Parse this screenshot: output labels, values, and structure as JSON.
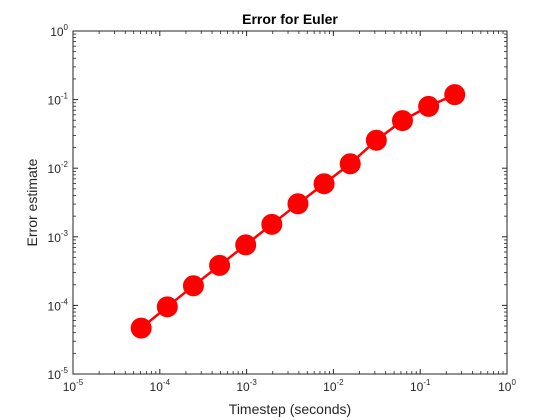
{
  "chart_data": {
    "type": "line",
    "title": "Error for Euler",
    "xlabel": "Timestep (seconds)",
    "ylabel": "Error estimate",
    "xscale": "log",
    "yscale": "log",
    "xlim": [
      1e-05,
      1
    ],
    "ylim": [
      1e-05,
      1
    ],
    "x_tick_labels": [
      {
        "base": "10",
        "exp": "-5",
        "value": 1e-05
      },
      {
        "base": "10",
        "exp": "-4",
        "value": 0.0001
      },
      {
        "base": "10",
        "exp": "-3",
        "value": 0.001
      },
      {
        "base": "10",
        "exp": "-2",
        "value": 0.01
      },
      {
        "base": "10",
        "exp": "-1",
        "value": 0.1
      },
      {
        "base": "10",
        "exp": "0",
        "value": 1
      }
    ],
    "y_tick_labels": [
      {
        "base": "10",
        "exp": "-5",
        "value": 1e-05
      },
      {
        "base": "10",
        "exp": "-4",
        "value": 0.0001
      },
      {
        "base": "10",
        "exp": "-3",
        "value": 0.001
      },
      {
        "base": "10",
        "exp": "-2",
        "value": 0.01
      },
      {
        "base": "10",
        "exp": "-1",
        "value": 0.1
      },
      {
        "base": "10",
        "exp": "0",
        "value": 1
      }
    ],
    "grid": false,
    "series": [
      {
        "color": "#ff0000",
        "marker": "filled-circle",
        "x": [
          6.104e-05,
          0.0001221,
          0.0002441,
          0.0004883,
          0.0009766,
          0.001953,
          0.003906,
          0.007813,
          0.01563,
          0.03125,
          0.0625,
          0.125,
          0.25
        ],
        "y": [
          4.67e-05,
          9.53e-05,
          0.000193,
          0.000383,
          0.000762,
          0.00152,
          0.00303,
          0.00594,
          0.0116,
          0.0256,
          0.0494,
          0.0795,
          0.118
        ]
      }
    ]
  }
}
